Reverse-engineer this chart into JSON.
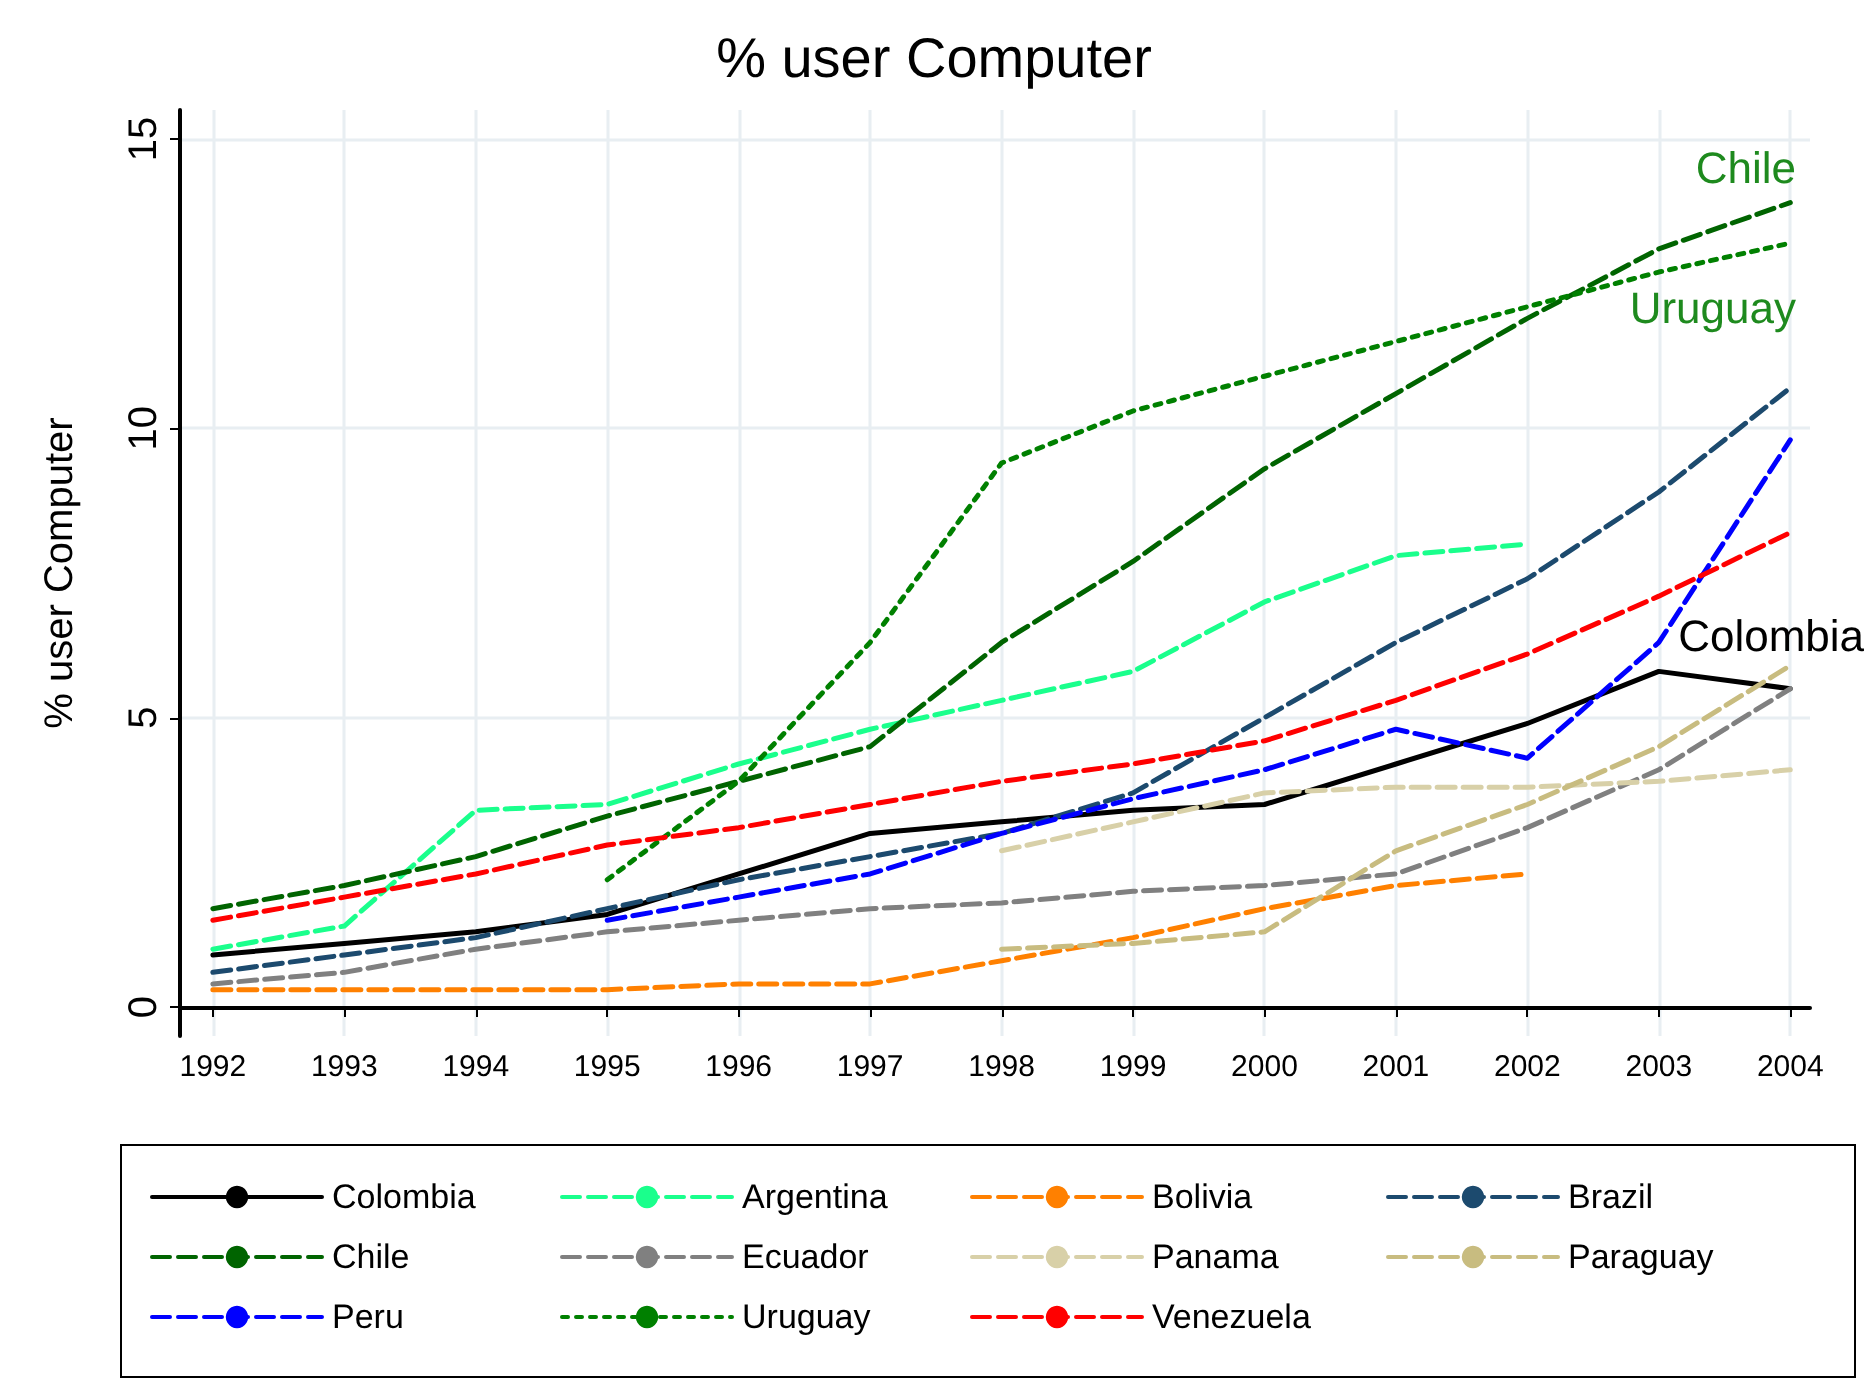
{
  "chart_data": {
    "type": "line",
    "title": "% user Computer",
    "ylabel": "% user Computer",
    "x": [
      1992,
      1993,
      1994,
      1995,
      1996,
      1997,
      1998,
      1999,
      2000,
      2001,
      2002,
      2003,
      2004
    ],
    "xlim": [
      1991.75,
      2004.15
    ],
    "xticks": [
      1992,
      1993,
      1994,
      1995,
      1996,
      1997,
      1998,
      1999,
      2000,
      2001,
      2002,
      2003,
      2004
    ],
    "ylim": [
      -0.5,
      15.5
    ],
    "yticks": [
      0,
      5,
      10,
      15
    ],
    "grid": true,
    "legend": "bottom",
    "marker": "none",
    "series": [
      {
        "name": "Colombia",
        "color": "#000000",
        "line_style": "solid",
        "values": [
          0.9,
          1.1,
          1.3,
          1.6,
          2.3,
          3.0,
          3.2,
          3.4,
          3.5,
          4.2,
          4.9,
          5.8,
          5.5
        ]
      },
      {
        "name": "Argentina",
        "color": "#1aff8c",
        "line_style": "dashed",
        "values": [
          1.0,
          1.4,
          3.4,
          3.5,
          4.2,
          4.8,
          5.3,
          5.8,
          7.0,
          7.8,
          8.0,
          null,
          null
        ]
      },
      {
        "name": "Bolivia",
        "color": "#ff8000",
        "line_style": "dashed",
        "values": [
          0.3,
          0.3,
          0.3,
          0.3,
          0.4,
          0.4,
          0.8,
          1.2,
          1.7,
          2.1,
          2.3,
          null,
          null
        ]
      },
      {
        "name": "Brazil",
        "color": "#1c4a6e",
        "line_style": "dashed",
        "values": [
          0.6,
          0.9,
          1.2,
          1.7,
          2.2,
          2.6,
          3.0,
          3.7,
          5.0,
          6.3,
          7.4,
          8.9,
          10.7
        ]
      },
      {
        "name": "Chile",
        "color": "#006400",
        "line_style": "dashed",
        "values": [
          1.7,
          2.1,
          2.6,
          3.3,
          3.9,
          4.5,
          6.3,
          7.7,
          9.3,
          10.6,
          11.9,
          13.1,
          13.9
        ]
      },
      {
        "name": "Ecuador",
        "color": "#808080",
        "line_style": "dashed",
        "values": [
          0.4,
          0.6,
          1.0,
          1.3,
          1.5,
          1.7,
          1.8,
          2.0,
          2.1,
          2.3,
          3.1,
          4.1,
          5.5
        ]
      },
      {
        "name": "Panama",
        "color": "#d8d0a8",
        "line_style": "dashed",
        "values": [
          null,
          null,
          null,
          null,
          null,
          null,
          2.7,
          3.2,
          3.7,
          3.8,
          3.8,
          3.9,
          4.1
        ]
      },
      {
        "name": "Paraguay",
        "color": "#c8bc80",
        "line_style": "dashed",
        "values": [
          null,
          null,
          null,
          null,
          null,
          null,
          1.0,
          1.1,
          1.3,
          2.7,
          3.5,
          4.5,
          5.9
        ]
      },
      {
        "name": "Peru",
        "color": "#0000ff",
        "line_style": "dashed",
        "values": [
          null,
          null,
          null,
          1.5,
          1.9,
          2.3,
          3.0,
          3.6,
          4.1,
          4.8,
          4.3,
          6.3,
          9.8
        ]
      },
      {
        "name": "Uruguay",
        "color": "#008000",
        "line_style": "dotted",
        "values": [
          null,
          null,
          null,
          2.2,
          3.9,
          6.3,
          9.4,
          10.3,
          10.9,
          11.5,
          12.1,
          12.7,
          13.2
        ]
      },
      {
        "name": "Venezuela",
        "color": "#ff0000",
        "line_style": "dashed",
        "values": [
          1.5,
          1.9,
          2.3,
          2.8,
          3.1,
          3.5,
          3.9,
          4.2,
          4.6,
          5.3,
          6.1,
          7.1,
          8.2
        ]
      }
    ],
    "annotations": [
      "Chile",
      "Uruguay",
      "Colombia"
    ]
  }
}
